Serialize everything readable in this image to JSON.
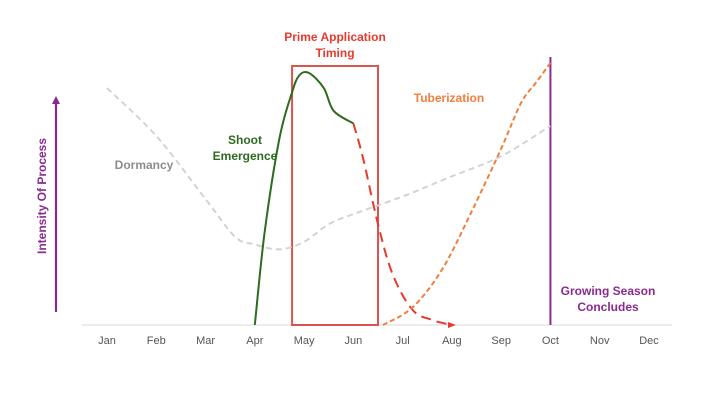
{
  "chart_data": {
    "type": "line",
    "categories": [
      "Jan",
      "Feb",
      "Mar",
      "Apr",
      "May",
      "Jun",
      "Jul",
      "Aug",
      "Sep",
      "Oct",
      "Nov",
      "Dec"
    ],
    "title": "",
    "xlabel": "",
    "ylabel": "Intensity Of Process",
    "ylim": [
      0,
      100
    ],
    "grid": false,
    "legend": "none",
    "series": [
      {
        "name": "Dormancy",
        "color": "#d3d3d3",
        "style": "dashed",
        "points": [
          [
            1,
            94
          ],
          [
            2,
            75
          ],
          [
            3,
            50
          ],
          [
            3.6,
            35
          ],
          [
            4,
            32
          ],
          [
            4.5,
            30
          ],
          [
            5,
            33
          ],
          [
            5.5,
            40
          ],
          [
            6,
            44
          ],
          [
            7,
            51
          ],
          [
            8,
            59
          ],
          [
            9,
            67
          ],
          [
            10,
            79
          ]
        ]
      },
      {
        "name": "Shoot Emergence",
        "color": "#2e6b1f",
        "style": "solid",
        "points": [
          [
            4,
            0
          ],
          [
            4.2,
            37
          ],
          [
            4.5,
            74
          ],
          [
            4.75,
            92
          ],
          [
            4.9,
            99
          ],
          [
            5.1,
            100
          ],
          [
            5.4,
            94
          ],
          [
            5.6,
            85
          ],
          [
            6,
            80
          ]
        ]
      },
      {
        "name": "Shoot Emergence (decline)",
        "color": "#e8392d",
        "style": "dashed",
        "points": [
          [
            6,
            80
          ],
          [
            6.2,
            66
          ],
          [
            6.5,
            40
          ],
          [
            6.8,
            20
          ],
          [
            7.2,
            6
          ],
          [
            7.6,
            2
          ],
          [
            8,
            0
          ]
        ]
      },
      {
        "name": "Tuberization",
        "color": "#f07f3c",
        "style": "dashed",
        "points": [
          [
            6.6,
            0
          ],
          [
            7.2,
            7
          ],
          [
            7.8,
            22
          ],
          [
            8.4,
            45
          ],
          [
            9,
            70
          ],
          [
            9.4,
            88
          ],
          [
            9.7,
            96
          ],
          [
            10,
            104
          ]
        ]
      }
    ],
    "annotations": {
      "dormancy": "Dormancy",
      "shoot_emergence": [
        "Shoot",
        "Emergence"
      ],
      "tuberization": "Tuberization",
      "prime_timing": [
        "Prime Application",
        "Timing"
      ],
      "season_end": [
        "Growing Season",
        "Concludes"
      ]
    },
    "highlight_window": {
      "from": 5,
      "to": 6.5,
      "label": "Prime Application Timing"
    },
    "season_end_month": 10,
    "colors": {
      "prime": "#e8392d",
      "prime_box": "#d9534f",
      "season_line": "#8b2a8e",
      "axis_arrow": "#8b2a8e",
      "dormancy_text": "#8c8c8c",
      "shoot_text": "#2e6b1f",
      "tuber_text": "#f07f3c",
      "baseline": "#d9d9d9"
    }
  }
}
